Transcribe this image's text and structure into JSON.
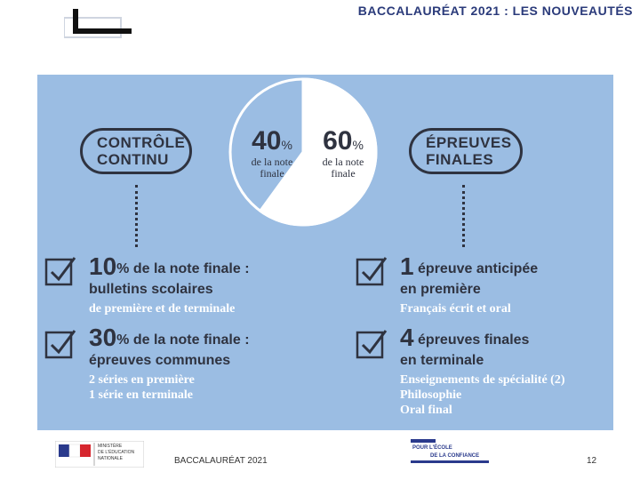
{
  "header": {
    "title": "BACCALAURÉAT 2021 : LES NOUVEAUTÉS"
  },
  "infographic": {
    "left_pill": {
      "line1": "CONTRÔLE",
      "line2": "CONTINU"
    },
    "right_pill": {
      "line1": "ÉPREUVES",
      "line2": "FINALES"
    },
    "pie": {
      "left": {
        "value": "40",
        "unit": "%",
        "desc1": "de la note",
        "desc2": "finale",
        "fraction": 0.4
      },
      "right": {
        "value": "60",
        "unit": "%",
        "desc1": "de la note",
        "desc2": "finale",
        "fraction": 0.6
      }
    },
    "items_left": [
      {
        "number": "10",
        "unit": "%",
        "line1": "de la note finale :",
        "bold": "bulletins scolaires",
        "sub": [
          "de première et de terminale"
        ]
      },
      {
        "number": "30",
        "unit": "%",
        "line1": "de la note finale :",
        "bold": "épreuves communes",
        "sub": [
          "2 séries en première",
          "1 série en terminale"
        ]
      }
    ],
    "items_right": [
      {
        "number": "1",
        "line1": "épreuve anticipée",
        "bold": "en première",
        "sub": [
          "Français écrit et oral"
        ]
      },
      {
        "number": "4",
        "line1": "épreuves finales",
        "bold": "en terminale",
        "sub": [
          "Enseignements de spécialité (2)",
          "Philosophie",
          "Oral final"
        ]
      }
    ]
  },
  "footer": {
    "ministry_logo_text": [
      "MINISTÈRE",
      "DE L'ÉDUCATION",
      "NATIONALE"
    ],
    "center_text": "BACCALAURÉAT 2021",
    "right_logo_text": [
      "POUR L'ÉCOLE",
      "DE LA CONFIANCE"
    ],
    "page_number": "12"
  },
  "colors": {
    "background": "#9bbde3",
    "ink": "#2f3340",
    "white": "#ffffff"
  }
}
